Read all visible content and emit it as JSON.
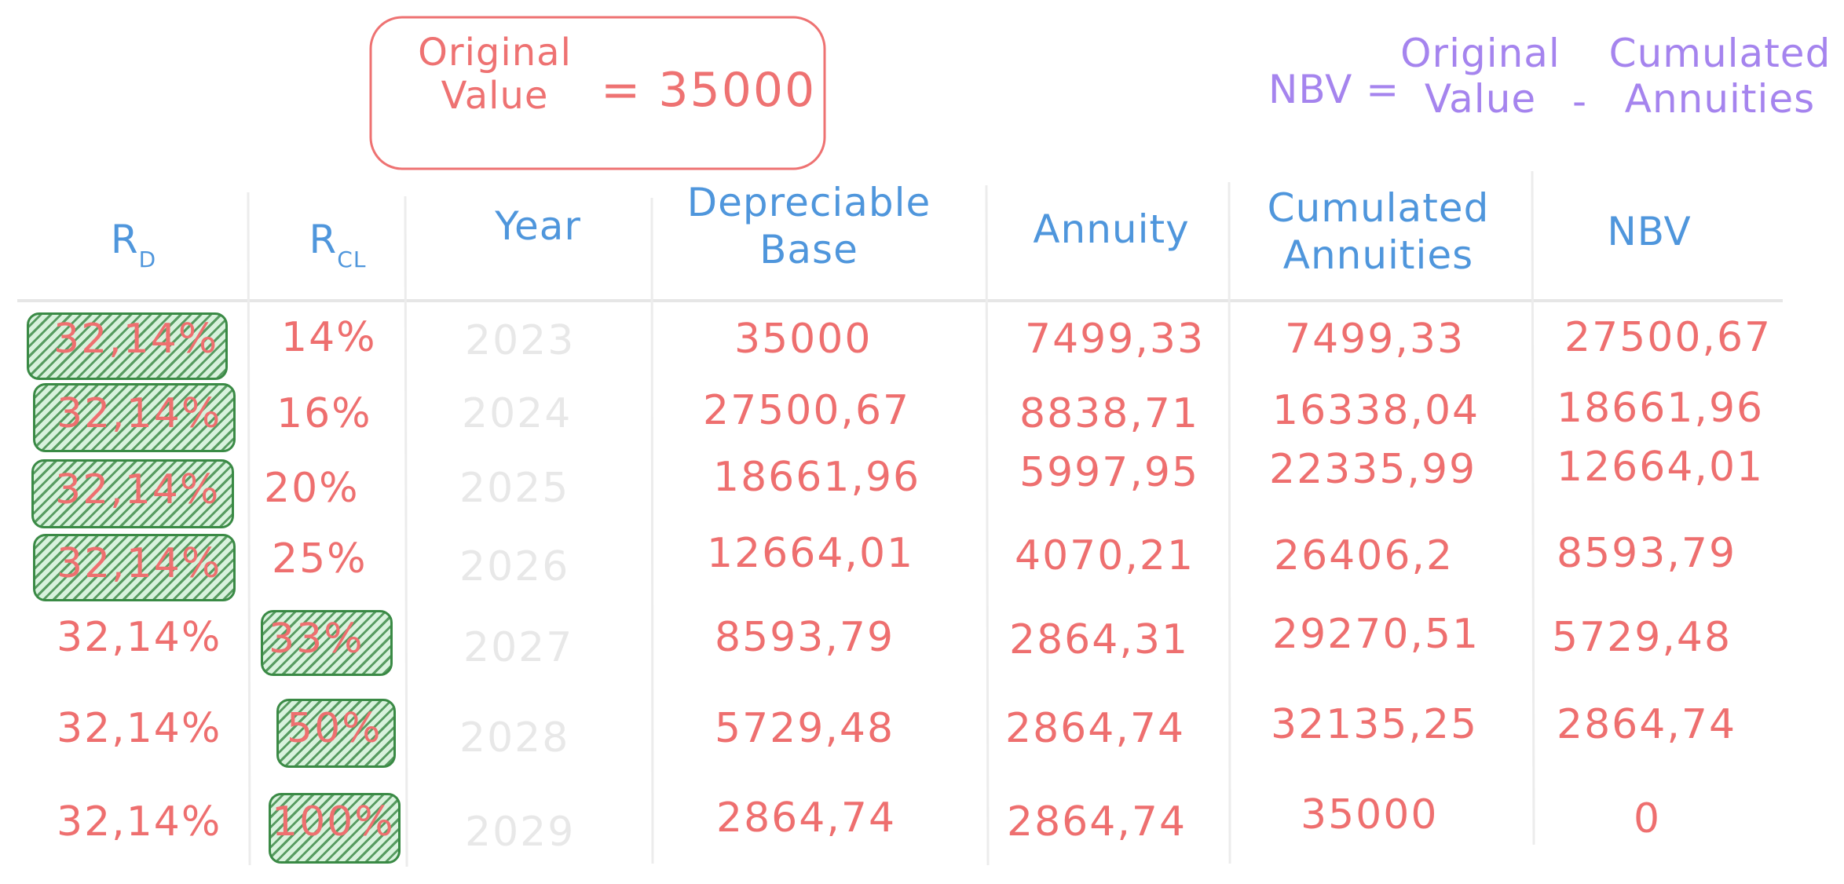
{
  "original_value_box": {
    "label_line1": "Original",
    "label_line2": "Value",
    "equals_value": "= 35000"
  },
  "formula": {
    "lhs": "NBV =",
    "term1_line1": "Original",
    "term1_line2": "Value",
    "minus": "-",
    "term2_line1": "Cumulated",
    "term2_line2": "Annuities"
  },
  "headers": {
    "rd_main": "R",
    "rd_sub": "D",
    "rcl_main": "R",
    "rcl_sub": "CL",
    "year": "Year",
    "depreciable_base_line1": "Depreciable",
    "depreciable_base_line2": "Base",
    "annuity": "Annuity",
    "cumulated_line1": "Cumulated",
    "cumulated_line2": "Annuities",
    "nbv": "NBV"
  },
  "rows": [
    {
      "rd": "32,14%",
      "rcl": "14%",
      "year": "2023",
      "base": "35000",
      "annuity": "7499,33",
      "cumulated": "7499,33",
      "nbv": "27500,67",
      "rd_highlighted": true,
      "rcl_highlighted": false
    },
    {
      "rd": "32,14%",
      "rcl": "16%",
      "year": "2024",
      "base": "27500,67",
      "annuity": "8838,71",
      "cumulated": "16338,04",
      "nbv": "18661,96",
      "rd_highlighted": true,
      "rcl_highlighted": false
    },
    {
      "rd": "32,14%",
      "rcl": "20%",
      "year": "2025",
      "base": "18661,96",
      "annuity": "5997,95",
      "cumulated": "22335,99",
      "nbv": "12664,01",
      "rd_highlighted": true,
      "rcl_highlighted": false
    },
    {
      "rd": "32,14%",
      "rcl": "25%",
      "year": "2026",
      "base": "12664,01",
      "annuity": "4070,21",
      "cumulated": "26406,2",
      "nbv": "8593,79",
      "rd_highlighted": true,
      "rcl_highlighted": false
    },
    {
      "rd": "32,14%",
      "rcl": "33%",
      "year": "2027",
      "base": "8593,79",
      "annuity": "2864,31",
      "cumulated": "29270,51",
      "nbv": "5729,48",
      "rd_highlighted": false,
      "rcl_highlighted": true
    },
    {
      "rd": "32,14%",
      "rcl": "50%",
      "year": "2028",
      "base": "5729,48",
      "annuity": "2864,74",
      "cumulated": "32135,25",
      "nbv": "2864,74",
      "rd_highlighted": false,
      "rcl_highlighted": true
    },
    {
      "rd": "32,14%",
      "rcl": "100%",
      "year": "2029",
      "base": "2864,74",
      "annuity": "2864,74",
      "cumulated": "35000",
      "nbv": "0",
      "rd_highlighted": false,
      "rcl_highlighted": true
    }
  ],
  "colors": {
    "box_stroke": "#ee7272",
    "value_text": "#ee6f6f",
    "header_text": "#4f96dc",
    "formula_text": "#a584ee",
    "year_text": "#e8e8e8",
    "highlight_stroke": "#3a8a45",
    "grid": "#e6e6e6"
  }
}
